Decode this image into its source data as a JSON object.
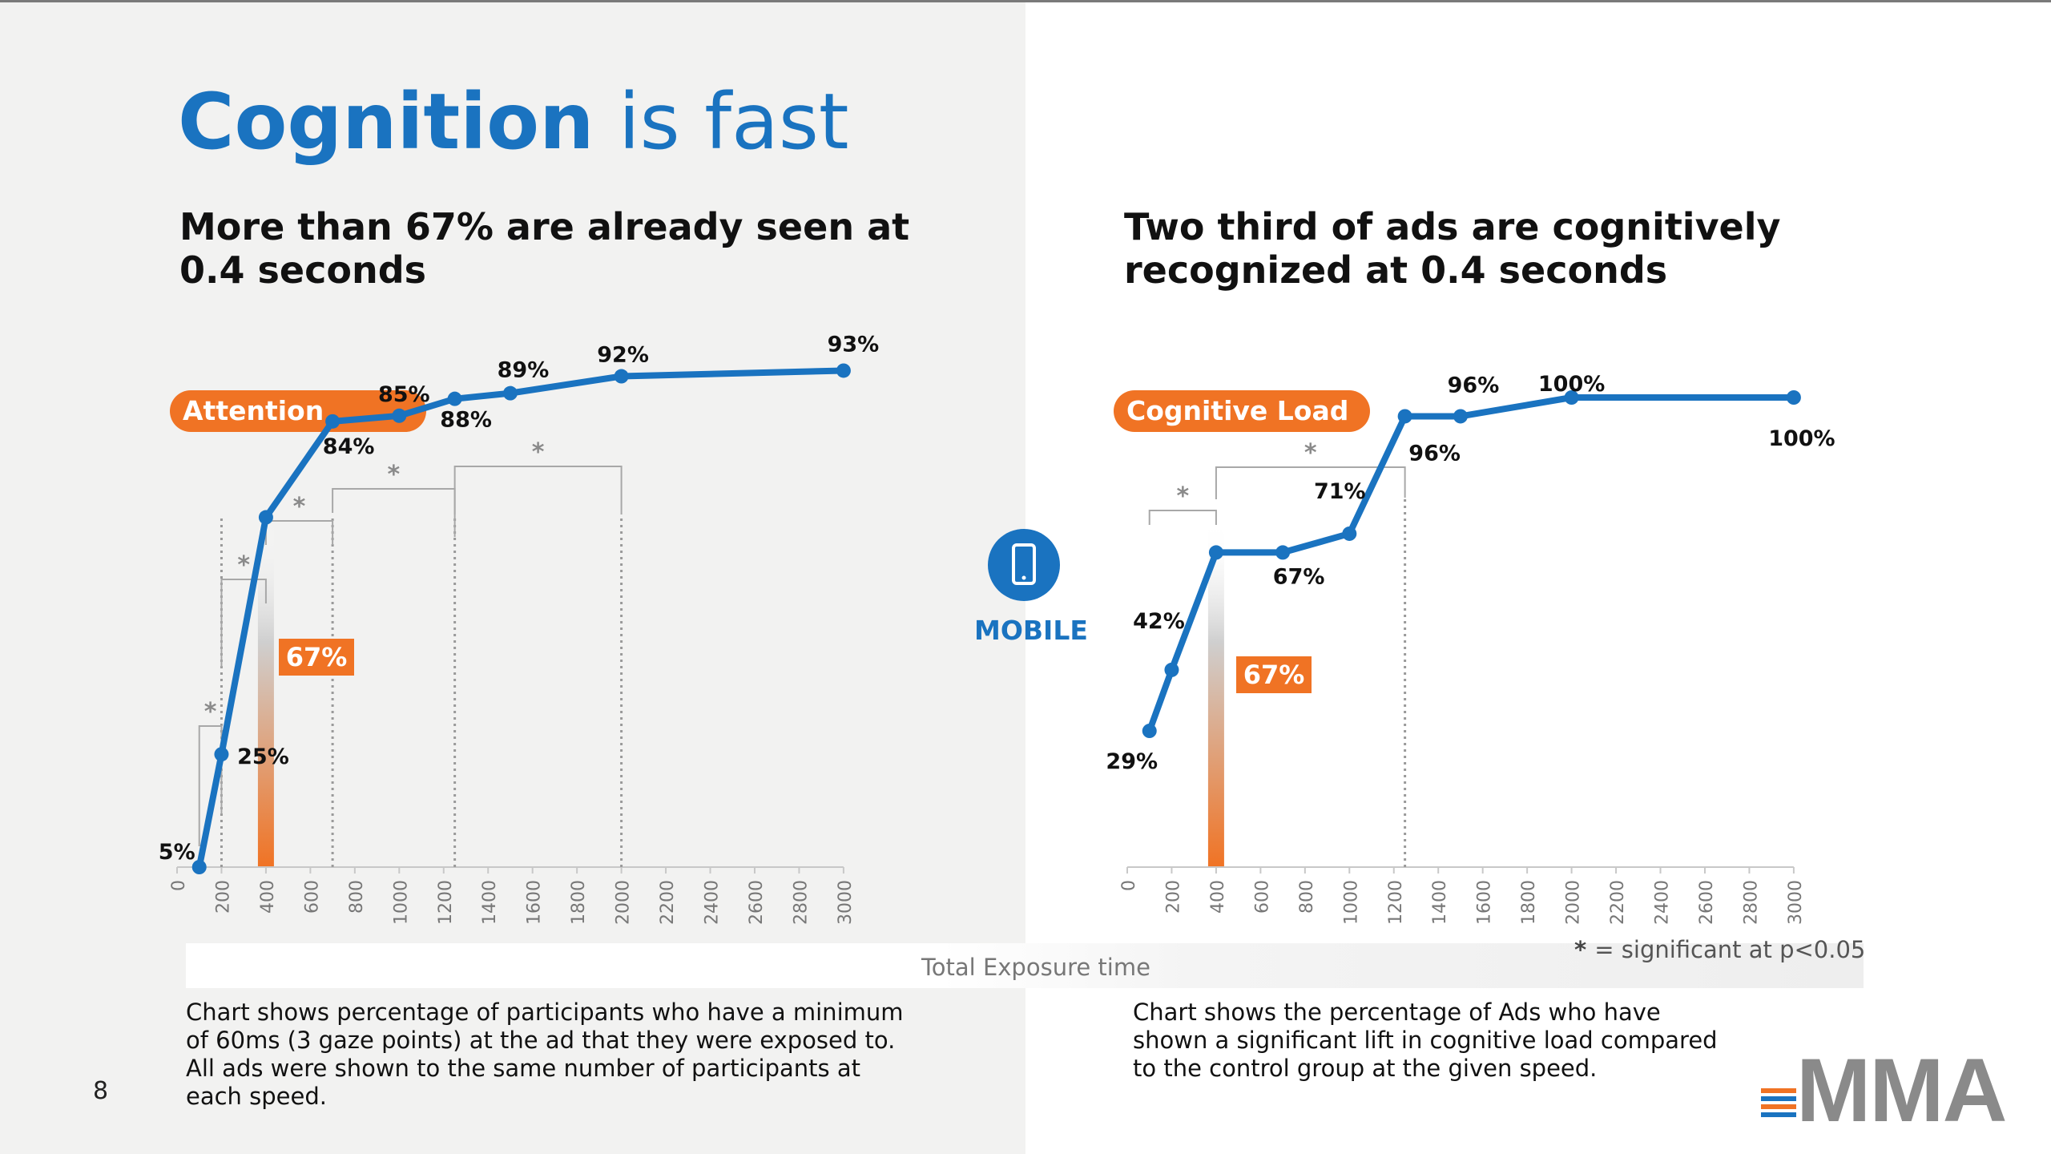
{
  "slide": {
    "title_bold": "Cognition",
    "title_rest": " is fast",
    "page_number": "8",
    "mobile_label": "MOBILE",
    "x_axis_title": "Total Exposure time",
    "significance_note": "= significant at p<0.05",
    "logo_text": "MMA"
  },
  "left": {
    "subtitle": "More than 67% are already seen at 0.4 seconds",
    "pill": "Attention",
    "highlight": "67%",
    "note": "Chart shows percentage of participants who have a minimum of 60ms (3 gaze points) at the ad that they were exposed to. All ads were shown to the same number of participants at each speed."
  },
  "right": {
    "subtitle": "Two third of ads are cognitively recognized at 0.4 seconds",
    "pill": "Cognitive Load",
    "highlight": "67%",
    "note": "Chart shows the percentage of Ads who have shown a significant lift in cognitive load compared to the control group at the given speed."
  },
  "colors": {
    "line": "#1a73c0",
    "accent": "#f07324",
    "title": "#1a73c0"
  },
  "chart_data": [
    {
      "type": "line",
      "title": "Attention",
      "xlabel": "Total Exposure time",
      "ylabel": "",
      "x_ticks": [
        "0",
        "200",
        "400",
        "600",
        "800",
        "1000",
        "1200",
        "1400",
        "1600",
        "1800",
        "2000",
        "2200",
        "2400",
        "2600",
        "2800",
        "3000"
      ],
      "xlim": [
        0,
        3000
      ],
      "ylim": [
        0,
        100
      ],
      "series": [
        {
          "name": "Attention",
          "x": [
            100,
            200,
            400,
            700,
            1000,
            1250,
            1500,
            2000,
            3000
          ],
          "values": [
            5,
            25,
            67,
            84,
            85,
            88,
            89,
            92,
            93
          ]
        }
      ],
      "point_labels": [
        "5%",
        "25%",
        "",
        "84%",
        "85%",
        "88%",
        "89%",
        "92%",
        "93%"
      ],
      "highlight": {
        "x": 400,
        "label": "67%"
      },
      "significance_brackets": [
        [
          100,
          200
        ],
        [
          200,
          400
        ],
        [
          400,
          700
        ],
        [
          700,
          1250
        ],
        [
          1250,
          2000
        ]
      ]
    },
    {
      "type": "line",
      "title": "Cognitive Load",
      "xlabel": "Total Exposure time",
      "ylabel": "",
      "x_ticks": [
        "0",
        "200",
        "400",
        "600",
        "800",
        "1000",
        "1200",
        "1400",
        "1600",
        "1800",
        "2000",
        "2200",
        "2400",
        "2600",
        "2800",
        "3000"
      ],
      "xlim": [
        0,
        3000
      ],
      "ylim": [
        0,
        100
      ],
      "series": [
        {
          "name": "Cognitive Load",
          "x": [
            100,
            200,
            400,
            700,
            1000,
            1250,
            1500,
            2000,
            3000
          ],
          "values": [
            29,
            42,
            67,
            67,
            71,
            96,
            96,
            100,
            100
          ]
        }
      ],
      "point_labels": [
        "29%",
        "42%",
        "",
        "67%",
        "71%",
        "96%",
        "96%",
        "100%",
        "100%"
      ],
      "highlight": {
        "x": 400,
        "label": "67%"
      },
      "significance_brackets": [
        [
          100,
          400
        ],
        [
          400,
          1250
        ]
      ]
    }
  ]
}
